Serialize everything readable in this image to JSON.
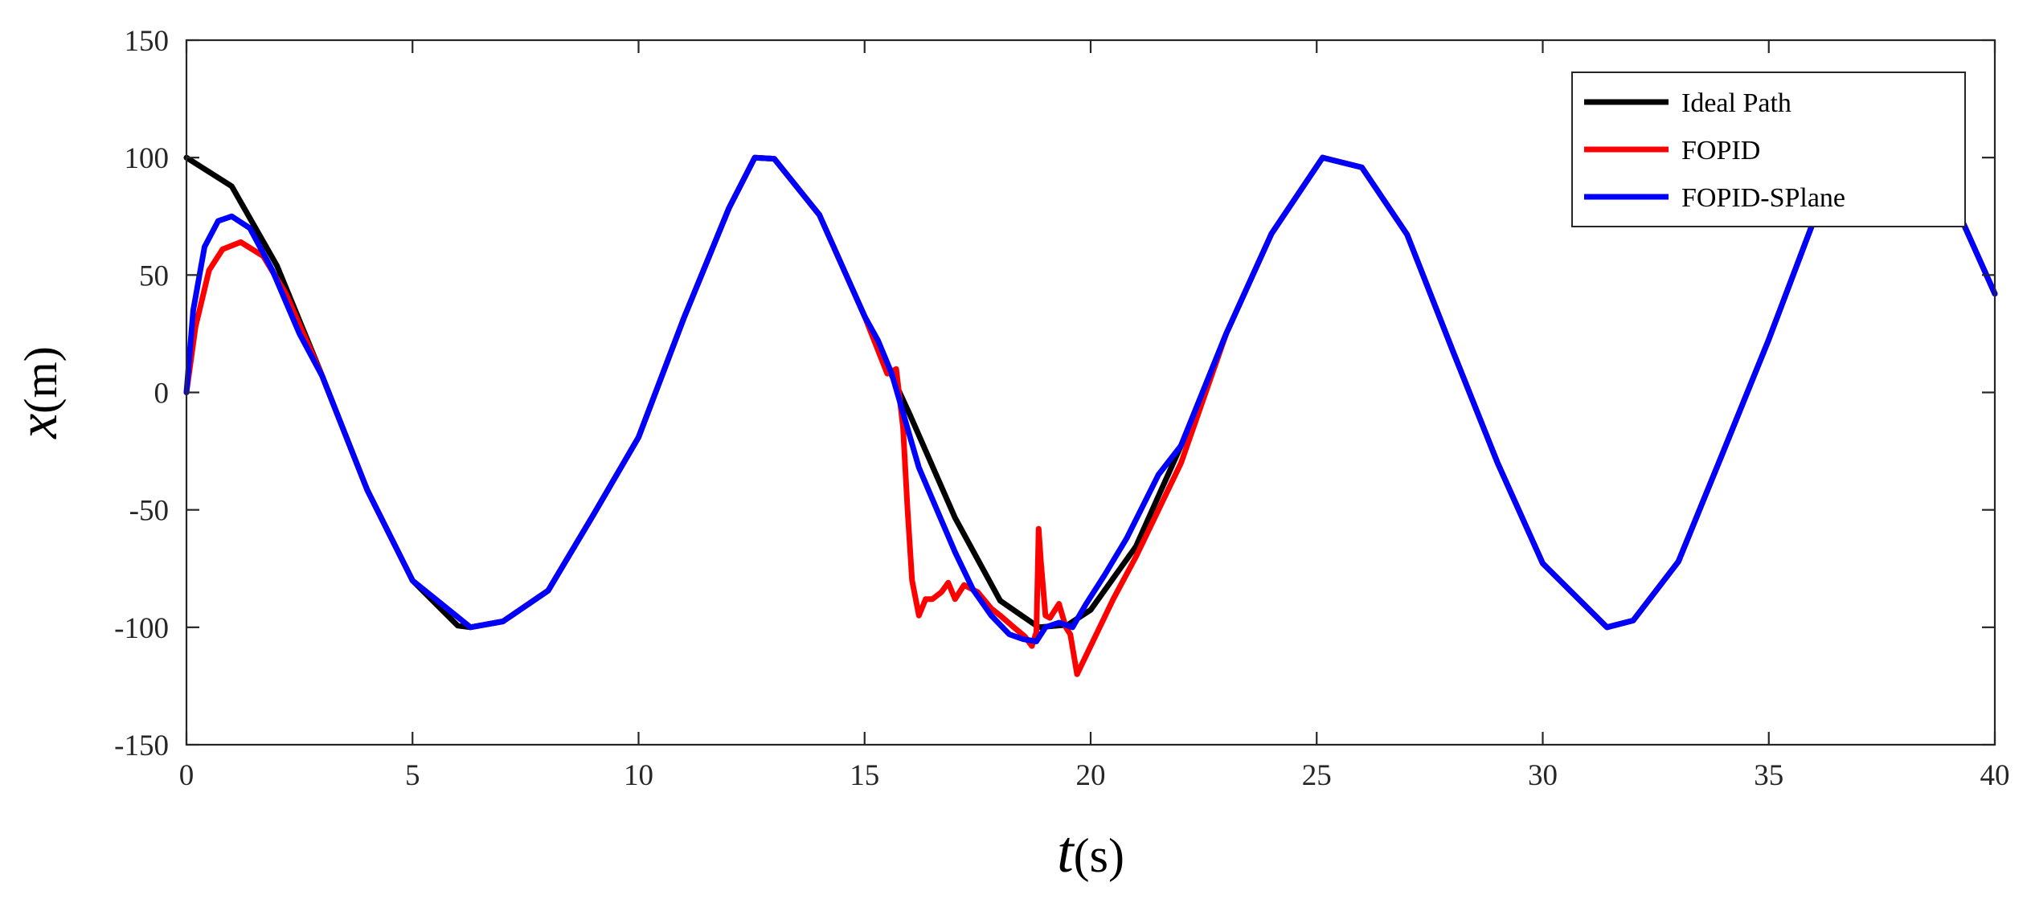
{
  "chart_data": {
    "type": "line",
    "xlabel_italic": "t",
    "xlabel_unit": "(s)",
    "ylabel_italic": "x",
    "ylabel_unit": "(m)",
    "xlim": [
      0,
      40
    ],
    "ylim": [
      -150,
      150
    ],
    "xticks": [
      0,
      5,
      10,
      15,
      20,
      25,
      30,
      35,
      40
    ],
    "yticks": [
      -150,
      -100,
      -50,
      0,
      50,
      100,
      150
    ],
    "grid": false,
    "legend_position": "top-right",
    "series": [
      {
        "name": "Ideal Path",
        "color": "#000000",
        "x": [
          0,
          1,
          2,
          3,
          4,
          5,
          6,
          6.28,
          7,
          8,
          9,
          10,
          11,
          12,
          12.57,
          13,
          14,
          15,
          16,
          17,
          18,
          18.85,
          19.5,
          20,
          21,
          22,
          23,
          24,
          25.13,
          26,
          27,
          28,
          29,
          30,
          31.42,
          32,
          33,
          34,
          35,
          36,
          37,
          37.7,
          38,
          39,
          40
        ],
        "y": [
          100,
          87.8,
          54.0,
          7.1,
          -41.6,
          -80.1,
          -99.3,
          -100,
          -97.5,
          -84.4,
          -52.1,
          -19.1,
          31.6,
          78.5,
          100,
          99.5,
          75.6,
          32.4,
          -9.4,
          -53.4,
          -88.7,
          -100,
          -98.9,
          -92.6,
          -65.6,
          -22.6,
          25.1,
          67.6,
          100,
          95.8,
          67.2,
          18.2,
          -30.0,
          -72.8,
          -100,
          -97.1,
          -72.0,
          -24.9,
          22.6,
          73.4,
          99.0,
          100,
          99.5,
          85.0,
          42.0
        ]
      },
      {
        "name": "FOPID",
        "color": "#ff0000",
        "x": [
          0,
          0.2,
          0.5,
          0.8,
          1.2,
          1.7,
          2.2,
          3,
          4,
          5,
          6.28,
          7,
          8,
          9,
          10,
          11,
          12,
          12.57,
          13,
          14,
          15,
          15.5,
          15.7,
          15.85,
          15.95,
          16.05,
          16.2,
          16.35,
          16.5,
          16.7,
          16.85,
          17.0,
          17.2,
          17.5,
          17.8,
          18.0,
          18.3,
          18.55,
          18.7,
          18.8,
          18.85,
          18.9,
          19.0,
          19.1,
          19.3,
          19.45,
          19.55,
          19.7,
          20.0,
          20.5,
          21.0,
          21.5,
          22.0,
          23.0,
          24.0,
          25.13,
          26,
          27,
          28,
          29,
          30,
          31.42,
          32,
          33,
          34,
          35,
          36,
          37,
          37.7,
          38,
          39,
          40
        ],
        "y": [
          0,
          28,
          52,
          61,
          64,
          58,
          42,
          7,
          -41.6,
          -80.1,
          -100,
          -97.5,
          -84.4,
          -52.1,
          -19.1,
          31.6,
          78.5,
          100,
          99.5,
          75.6,
          32.4,
          8,
          10,
          -15,
          -50,
          -80,
          -95,
          -88,
          -88,
          -85,
          -81,
          -88,
          -82,
          -85,
          -92,
          -95,
          -100,
          -104,
          -108,
          -102,
          -58,
          -72,
          -95,
          -96,
          -90,
          -100,
          -103,
          -120,
          -108,
          -88,
          -70,
          -50,
          -30,
          25.1,
          67.6,
          100,
          95.8,
          67.2,
          18.2,
          -30.0,
          -72.8,
          -100,
          -97.1,
          -72.0,
          -24.9,
          22.6,
          73.4,
          99.0,
          100,
          99.5,
          85.0,
          42.0
        ]
      },
      {
        "name": "FOPID-SPlane",
        "color": "#0000ff",
        "x": [
          0,
          0.15,
          0.4,
          0.7,
          1.0,
          1.4,
          1.9,
          2.5,
          3,
          4,
          5,
          6.28,
          7,
          8,
          9,
          10,
          11,
          12,
          12.57,
          13,
          14,
          15,
          15.3,
          15.6,
          15.9,
          16.2,
          16.6,
          17.0,
          17.4,
          17.8,
          18.2,
          18.5,
          18.8,
          19.0,
          19.3,
          19.6,
          19.9,
          20.3,
          20.8,
          21.5,
          22,
          23,
          24,
          25.13,
          26,
          27,
          28,
          29,
          30,
          31.42,
          32,
          33,
          34,
          35,
          36,
          37,
          37.7,
          38,
          39,
          40
        ],
        "y": [
          0,
          35,
          62,
          73,
          75,
          70,
          52,
          25,
          7,
          -41.6,
          -80.1,
          -100,
          -97.5,
          -84.4,
          -52.1,
          -19.1,
          31.6,
          78.5,
          100,
          99.5,
          75.6,
          32.4,
          22,
          8,
          -12,
          -32,
          -50,
          -68,
          -84,
          -95,
          -103,
          -105,
          -106,
          -100,
          -98,
          -100,
          -90,
          -78,
          -62,
          -35,
          -22.6,
          25.1,
          67.6,
          100,
          95.8,
          67.2,
          18.2,
          -30.0,
          -72.8,
          -100,
          -97.1,
          -72.0,
          -24.9,
          22.6,
          73.4,
          99.0,
          100,
          99.5,
          85.0,
          42.0
        ]
      }
    ]
  }
}
